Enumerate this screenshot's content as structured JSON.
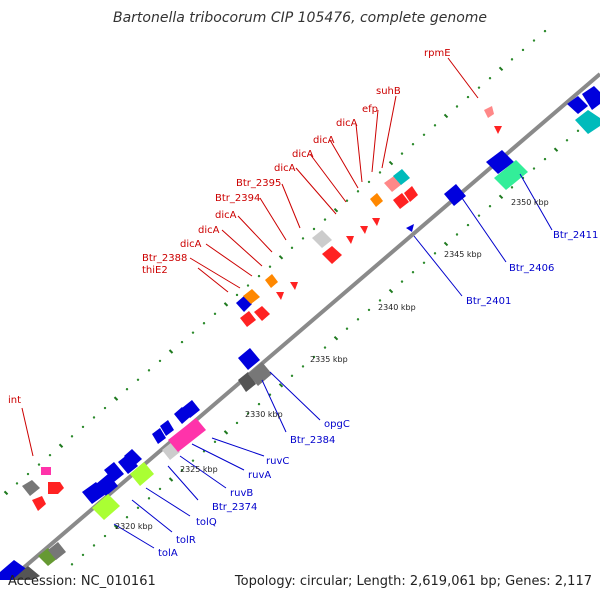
{
  "title": "Bartonella tribocorum CIP 105476, complete genome",
  "footer": {
    "accession": "Accession: NC_010161",
    "summary": "Topology: circular; Length: 2,619,061 bp; Genes: 2,117"
  },
  "colors": {
    "backbone": "#8a8a8a",
    "dot_track": "#2e8b2e",
    "tick_dash": "#1f7a1f",
    "label_top": "#cc0000",
    "label_bottom": "#0000cc"
  },
  "kbp_ticks": [
    "2320 kbp",
    "2325 kbp",
    "2330 kbp",
    "2335 kbp",
    "2340 kbp",
    "2345 kbp",
    "2350 kbp"
  ],
  "labels_top": [
    "int",
    "thiE2",
    "Btr_2388",
    "dicA",
    "dicA",
    "dicA",
    "Btr_2394",
    "Btr_2395",
    "dicA",
    "dicA",
    "dicA",
    "efp",
    "suhB",
    "rpmE"
  ],
  "labels_bottom": [
    "tolA",
    "tolR",
    "tolQ",
    "Btr_2374",
    "ruvB",
    "ruvA",
    "ruvC",
    "Btr_2384",
    "opgC",
    "Btr_2401",
    "Btr_2406",
    "Btr_2411"
  ]
}
